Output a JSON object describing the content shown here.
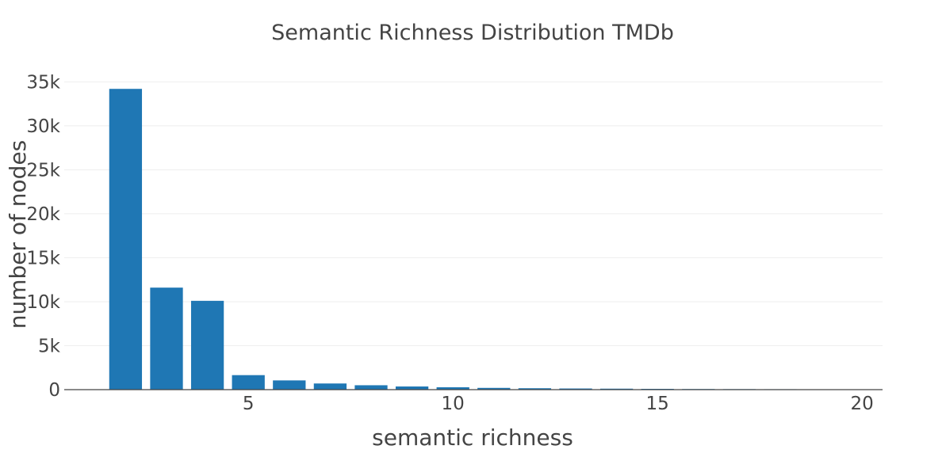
{
  "chart_data": {
    "type": "bar",
    "title": "Semantic Richness Distribution TMDb",
    "xlabel": "semantic richness",
    "ylabel": "number of nodes",
    "x": [
      2,
      3,
      4,
      5,
      6,
      7,
      8,
      9,
      10,
      11,
      12,
      13,
      14,
      15,
      16,
      17,
      18,
      19,
      20
    ],
    "values": [
      34200,
      11600,
      10100,
      1650,
      1050,
      700,
      500,
      360,
      270,
      200,
      160,
      130,
      110,
      90,
      70,
      60,
      50,
      40,
      35
    ],
    "xlim": [
      0.5,
      20.5
    ],
    "ylim": [
      0,
      35300
    ],
    "xticks": [
      5,
      10,
      15,
      20
    ],
    "xtick_labels": [
      "5",
      "10",
      "15",
      "20"
    ],
    "yticks": [
      0,
      5000,
      10000,
      15000,
      20000,
      25000,
      30000,
      35000
    ],
    "ytick_labels": [
      "0",
      "5k",
      "10k",
      "15k",
      "20k",
      "25k",
      "30k",
      "35k"
    ],
    "grid": true,
    "legend": "none",
    "bar_color": "#1f77b4"
  }
}
